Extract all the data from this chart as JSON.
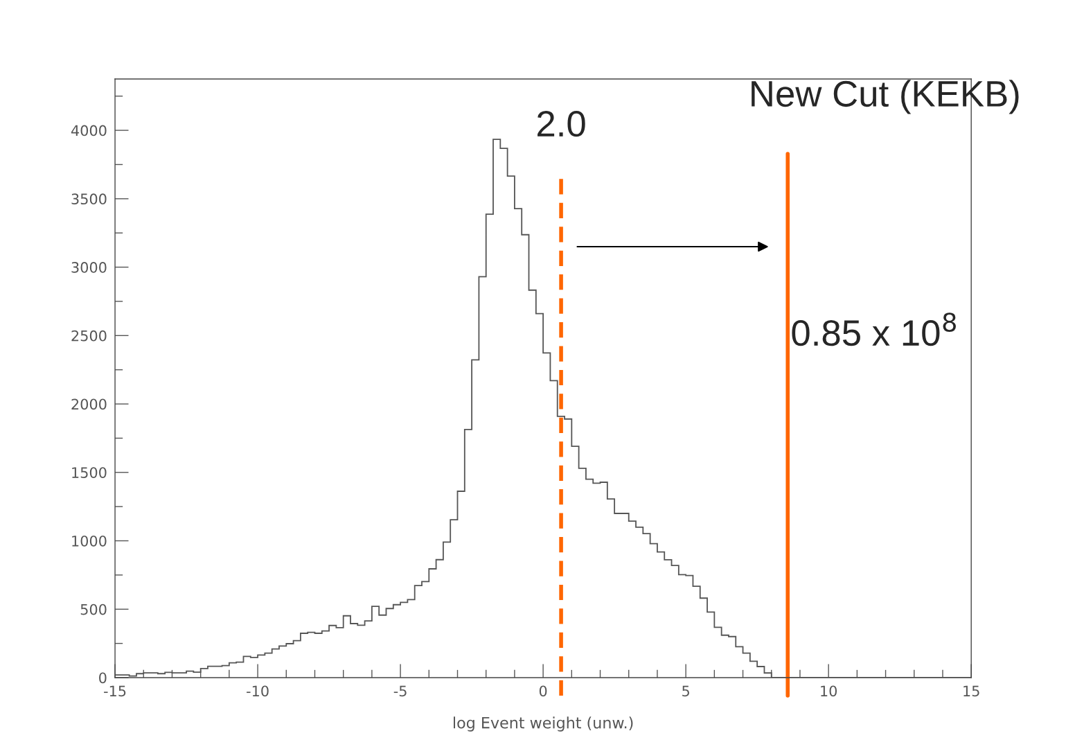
{
  "chart_data": {
    "type": "histogram",
    "xlabel": "log Event weight (unw.)",
    "bins": [
      -15,
      -14.75,
      -14.5,
      -14.25,
      -14,
      -13.75,
      -13.5,
      -13.25,
      -13,
      -12.75,
      -12.5,
      -12.25,
      -12,
      -11.75,
      -11.5,
      -11.25,
      -11,
      -10.75,
      -10.5,
      -10.25,
      -10,
      -9.75,
      -9.5,
      -9.25,
      -9,
      -8.75,
      -8.5,
      -8.25,
      -8,
      -7.75,
      -7.5,
      -7.25,
      -7,
      -6.75,
      -6.5,
      -6.25,
      -6,
      -5.75,
      -5.5,
      -5.25,
      -5,
      -4.75,
      -4.5,
      -4.25,
      -4,
      -3.75,
      -3.5,
      -3.25,
      -3,
      -2.75,
      -2.5,
      -2.25,
      -2,
      -1.75,
      -1.5,
      -1.25,
      -1,
      -0.75,
      -0.5,
      -0.25,
      0,
      0.25,
      0.5,
      0.75,
      1,
      1.25,
      1.5,
      1.75,
      2,
      2.25,
      2.5,
      2.75,
      3,
      3.25,
      3.5,
      3.75,
      4,
      4.25,
      4.5,
      4.75,
      5,
      5.25,
      5.5,
      5.75,
      6,
      6.25,
      6.5,
      6.75,
      7,
      7.25,
      7.5,
      7.75,
      8,
      8.25,
      8.5,
      8.75,
      9,
      9.25,
      9.5,
      9.75,
      10,
      10.25,
      10.5,
      10.75,
      11,
      11.25,
      11.5,
      11.75,
      12,
      12.25,
      12.5,
      12.75,
      13,
      13.25,
      13.5,
      13.75,
      14,
      14.25,
      14.5,
      14.75,
      15
    ],
    "values": [
      20,
      20,
      12,
      29,
      35,
      35,
      29,
      39,
      35,
      35,
      47,
      40,
      66,
      83,
      83,
      88,
      108,
      113,
      155,
      147,
      165,
      179,
      209,
      231,
      248,
      270,
      324,
      331,
      324,
      341,
      381,
      365,
      452,
      395,
      383,
      415,
      521,
      457,
      505,
      533,
      550,
      570,
      673,
      702,
      795,
      862,
      991,
      1154,
      1362,
      1813,
      2322,
      2930,
      3387,
      3934,
      3868,
      3666,
      3428,
      3237,
      2832,
      2660,
      2373,
      2170,
      1910,
      1890,
      1691,
      1530,
      1450,
      1421,
      1428,
      1306,
      1200,
      1200,
      1144,
      1099,
      1053,
      979,
      918,
      861,
      820,
      753,
      746,
      668,
      581,
      479,
      368,
      310,
      300,
      226,
      179,
      120,
      81,
      34,
      0,
      0,
      0,
      0,
      0,
      0,
      0,
      0,
      0,
      0,
      0,
      0,
      0,
      0,
      0,
      0,
      0,
      0,
      0,
      0,
      0,
      0,
      0,
      0,
      0,
      0,
      0,
      0
    ],
    "color": "#555555",
    "xlim": [
      -15,
      15
    ],
    "xticks": [
      -15,
      {
        "value": -14,
        "label": null
      },
      {
        "value": -13,
        "label": null
      },
      {
        "value": -12,
        "label": null
      },
      {
        "value": -11,
        "label": null
      },
      -10,
      {
        "value": -9,
        "label": null
      },
      {
        "value": -8,
        "label": null
      },
      {
        "value": -7,
        "label": null
      },
      {
        "value": -6,
        "label": null
      },
      -5,
      {
        "value": -4,
        "label": null
      },
      {
        "value": -3,
        "label": null
      },
      {
        "value": -2,
        "label": null
      },
      {
        "value": -1,
        "label": null
      },
      0,
      {
        "value": 1,
        "label": null
      },
      {
        "value": 2,
        "label": null
      },
      {
        "value": 3,
        "label": null
      },
      {
        "value": 4,
        "label": null
      },
      5,
      {
        "value": 6,
        "label": null
      },
      {
        "value": 7,
        "label": null
      },
      {
        "value": 8,
        "label": null
      },
      {
        "value": 9,
        "label": null
      },
      10,
      {
        "value": 11,
        "label": null
      },
      {
        "value": 12,
        "label": null
      },
      {
        "value": 13,
        "label": null
      },
      {
        "value": 14,
        "label": null
      },
      15
    ],
    "ylim": [
      0,
      4375
    ],
    "yticks": [
      0,
      {
        "value": 250,
        "label": null
      },
      500,
      {
        "value": 750,
        "label": null
      },
      1000,
      {
        "value": 1250,
        "label": null
      },
      1500,
      {
        "value": 1750,
        "label": null
      },
      2000,
      {
        "value": 2250,
        "label": null
      },
      2500,
      {
        "value": 2750,
        "label": null
      },
      3000,
      {
        "value": 3250,
        "label": null
      },
      3500,
      {
        "value": 3750,
        "label": null
      },
      4000,
      {
        "value": 4250,
        "label": null
      }
    ],
    "ref_lines": [
      {
        "axis": "x",
        "value": 0.63,
        "color": "#ff6600",
        "line_style": "dashed"
      },
      {
        "axis": "x",
        "value": 8.57,
        "label": "New Cut (KEKB)",
        "color": "#ff6600",
        "line_style": "solid"
      }
    ],
    "annotations": [
      "2.0",
      "0.85 x 10$^{8}$"
    ],
    "grid": false,
    "legend": false
  }
}
